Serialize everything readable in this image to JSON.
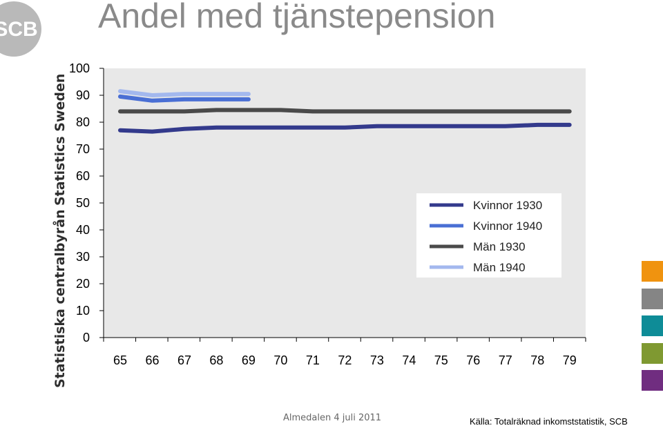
{
  "header": {
    "title": "Andel med tjänstepension",
    "logo_text": "SCB"
  },
  "brand": {
    "swedish": "Statistiska centralbyrån",
    "english": "Statistics Sweden"
  },
  "footer": {
    "event": "Almedalen 4 juli 2011",
    "source": "Källa: Totalräknad inkomststatistik, SCB"
  },
  "colors": {
    "logo": "#b9b9b9",
    "plot_background": "#e8e8e8",
    "swatches": [
      "#f0930f",
      "#858585",
      "#0e8c97",
      "#7f9931",
      "#702d80"
    ]
  },
  "chart_data": {
    "type": "line",
    "title": "",
    "xlabel": "",
    "ylabel": "",
    "x": [
      "65",
      "66",
      "67",
      "68",
      "69",
      "70",
      "71",
      "72",
      "73",
      "74",
      "75",
      "76",
      "77",
      "78",
      "79"
    ],
    "ylim": [
      0,
      100
    ],
    "yticks": [
      0,
      10,
      20,
      30,
      40,
      50,
      60,
      70,
      80,
      90,
      100
    ],
    "grid": false,
    "legend_position": "right",
    "series": [
      {
        "name": "Kvinnor 1930",
        "color": "#333a8c",
        "values": [
          77,
          76.5,
          77.5,
          78,
          78,
          78,
          78,
          78,
          78.5,
          78.5,
          78.5,
          78.5,
          78.5,
          79,
          79
        ]
      },
      {
        "name": "Kvinnor 1940",
        "color": "#4a6fd4",
        "values": [
          89.5,
          88,
          88.5,
          88.5,
          88.5,
          null,
          null,
          null,
          null,
          null,
          null,
          null,
          null,
          null,
          null
        ]
      },
      {
        "name": "Män 1930",
        "color": "#4a4a4a",
        "values": [
          84,
          84,
          84,
          84.5,
          84.5,
          84.5,
          84,
          84,
          84,
          84,
          84,
          84,
          84,
          84,
          84
        ]
      },
      {
        "name": "Män 1940",
        "color": "#a3b8ee",
        "values": [
          91.5,
          90,
          90.5,
          90.5,
          90.5,
          null,
          null,
          null,
          null,
          null,
          null,
          null,
          null,
          null,
          null
        ]
      }
    ]
  }
}
